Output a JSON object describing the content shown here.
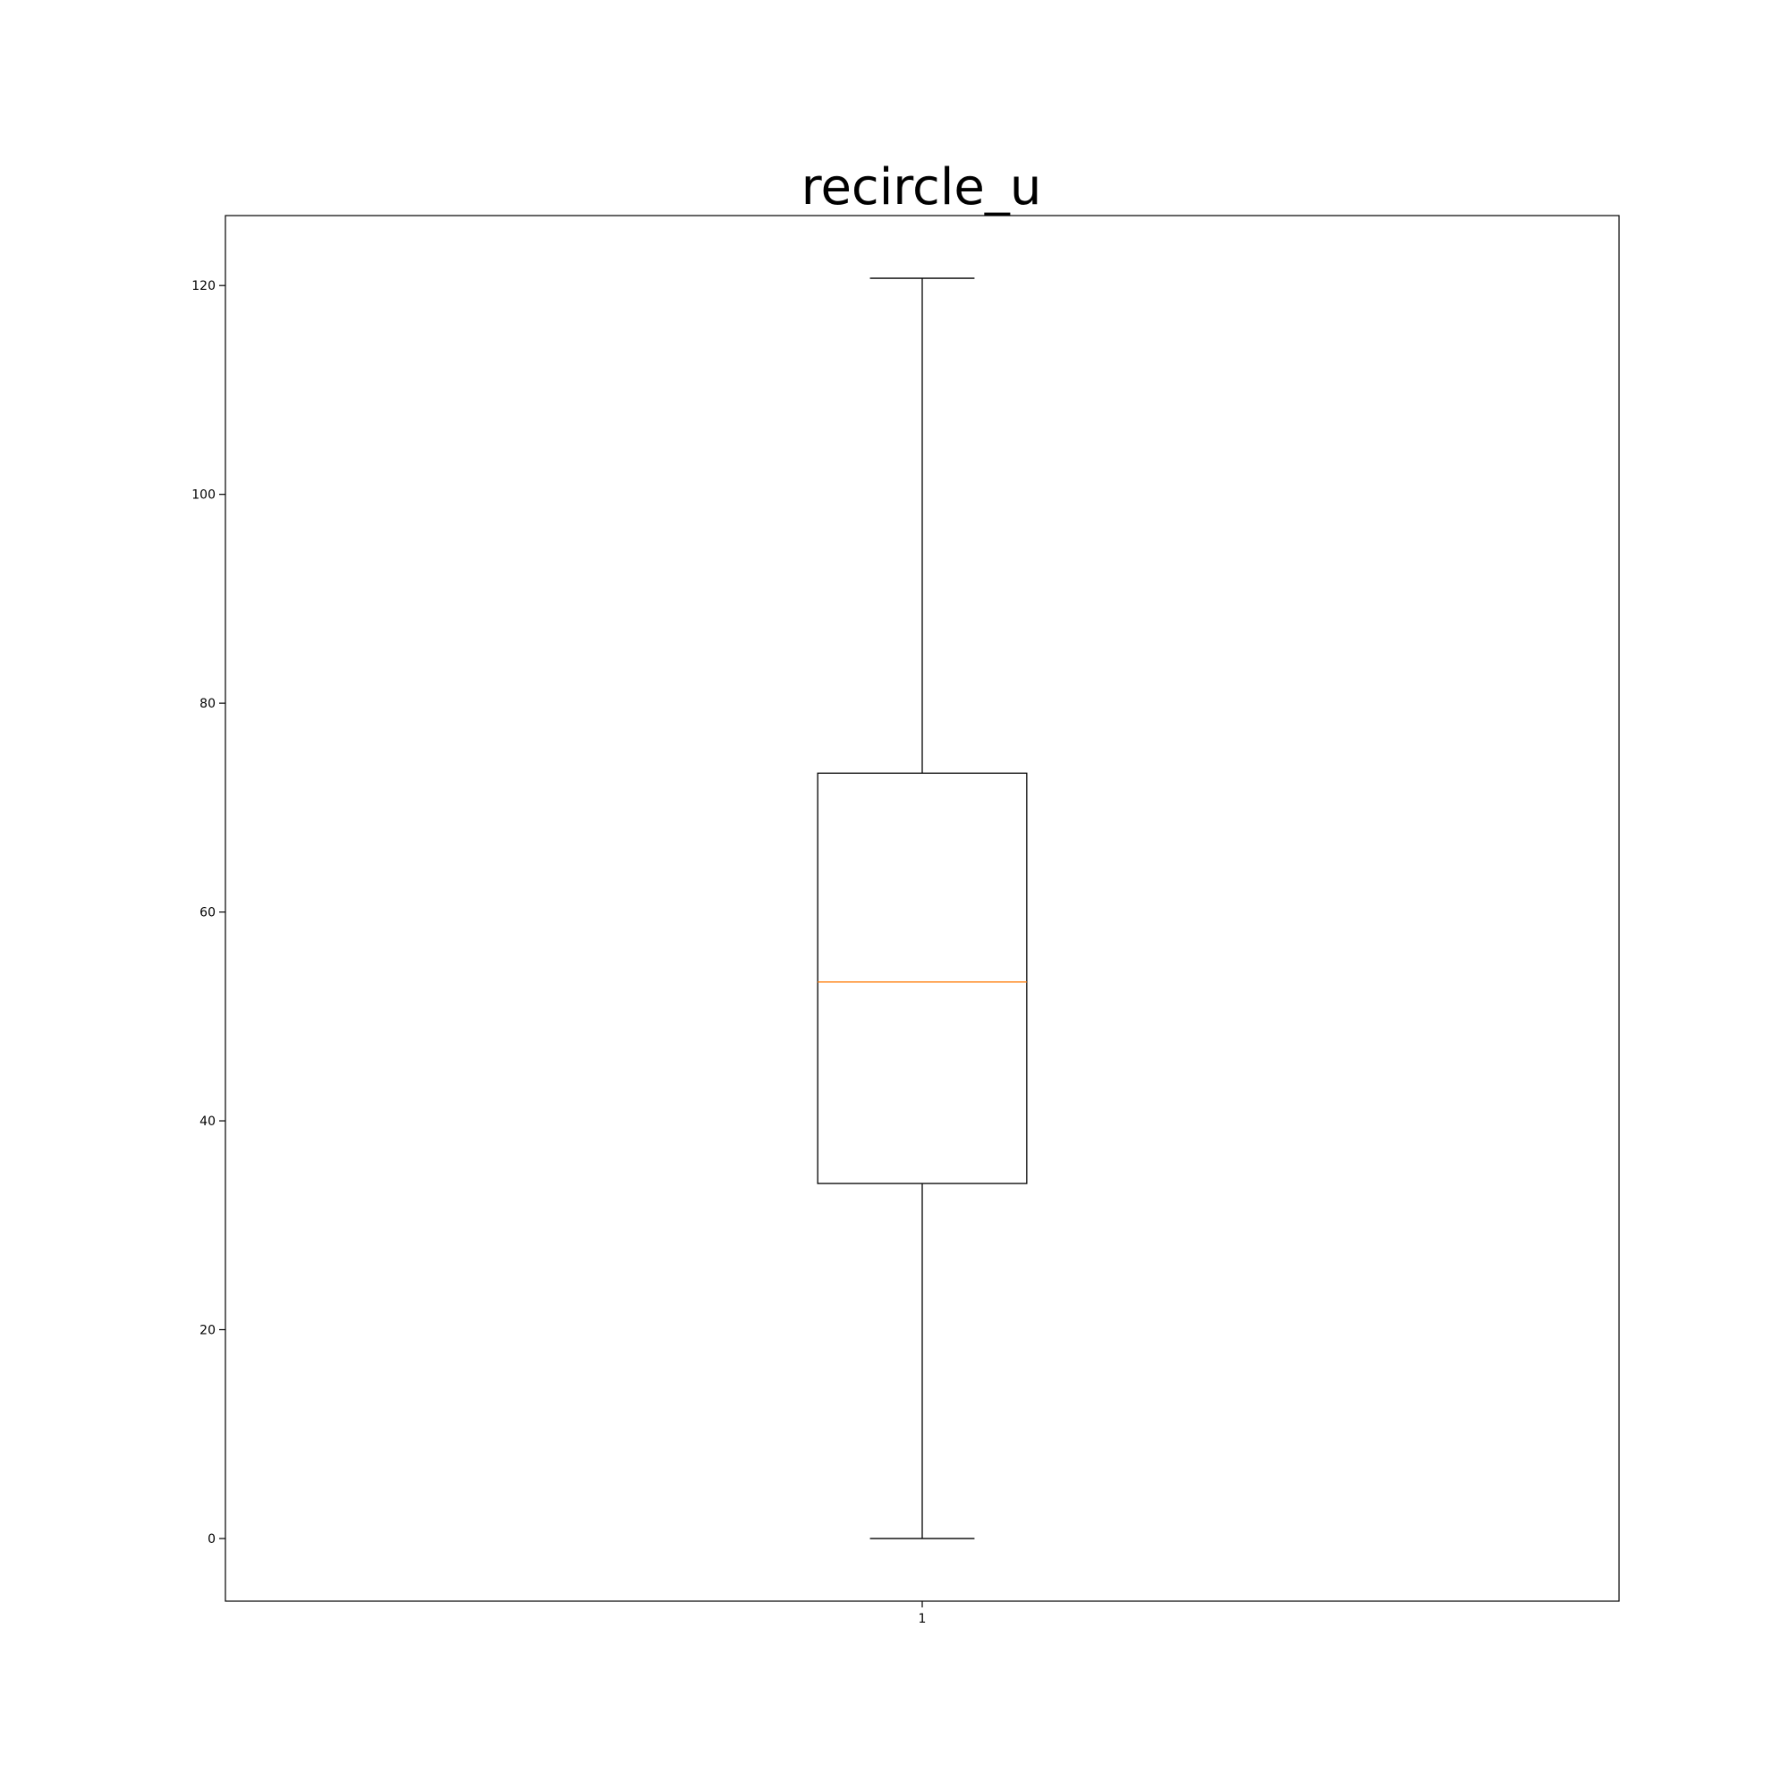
{
  "chart_data": {
    "type": "box",
    "title": "recircle_u",
    "xlabel": "",
    "ylabel": "",
    "categories": [
      "1"
    ],
    "boxes": [
      {
        "category": "1",
        "whisker_low": 0,
        "q1": 34,
        "median": 53.3,
        "q3": 73.3,
        "whisker_high": 120.7
      }
    ],
    "ylim": [
      -6,
      126.7
    ],
    "yticks": [
      0,
      20,
      40,
      60,
      80,
      100,
      120
    ],
    "grid": false,
    "colors": {
      "box": "#000000",
      "median": "#ff7f0e",
      "frame": "#000000"
    }
  }
}
